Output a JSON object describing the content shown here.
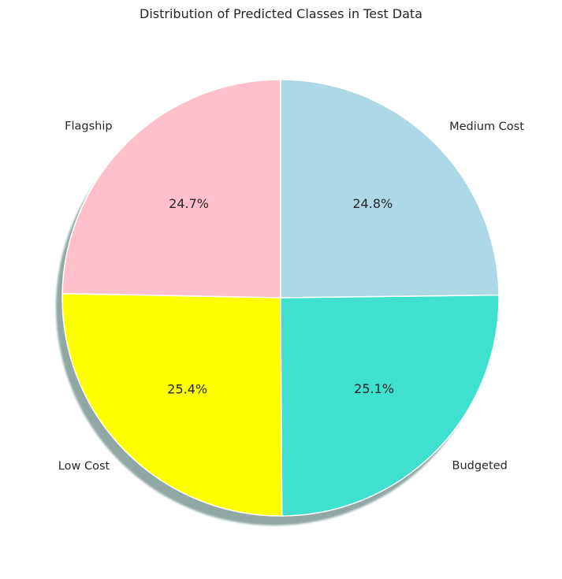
{
  "chart_data": {
    "type": "pie",
    "title": "Distribution of Predicted Classes in Test Data",
    "slices": [
      {
        "label": "Flagship",
        "value": 24.7,
        "pct_text": "24.7%",
        "color": "#ffc0cb"
      },
      {
        "label": "Low Cost",
        "value": 25.4,
        "pct_text": "25.4%",
        "color": "#ffff00"
      },
      {
        "label": "Budgeted",
        "value": 25.1,
        "pct_text": "25.1%",
        "color": "#40e0d0"
      },
      {
        "label": "Medium Cost",
        "value": 24.8,
        "pct_text": "24.8%",
        "color": "#add8e6"
      }
    ],
    "start_angle": 90,
    "direction": "counterclockwise",
    "shadow": true,
    "edge_color": "#ffffff"
  }
}
